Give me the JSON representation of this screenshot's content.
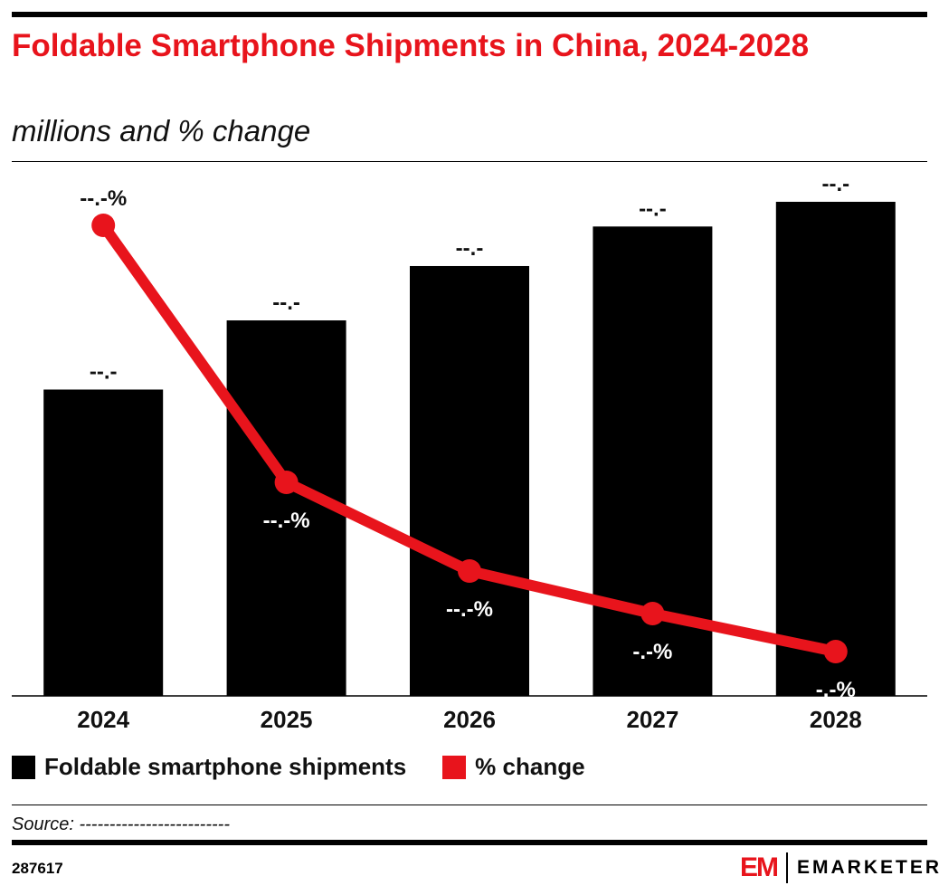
{
  "title": "Foldable Smartphone Shipments in China, 2024-2028",
  "subtitle": "millions and % change",
  "chart_data": {
    "type": "bar",
    "categories": [
      "2024",
      "2025",
      "2026",
      "2027",
      "2028"
    ],
    "series": [
      {
        "name": "Foldable smartphone shipments",
        "type": "bar",
        "color": "#000000",
        "values": [
          6.2,
          7.6,
          8.7,
          9.5,
          10.0
        ],
        "labels": [
          "--.-",
          "--.-",
          "--.-",
          "--.-",
          "--.-"
        ]
      },
      {
        "name": "% change",
        "type": "line",
        "color": "#e8141c",
        "values": [
          52.0,
          23.6,
          13.8,
          9.1,
          4.9
        ],
        "labels": [
          "--.-%",
          "--.-%",
          "--.-%",
          "-.-%",
          "-.-%"
        ]
      }
    ],
    "ylim": [
      0,
      10
    ],
    "y2lim": [
      0,
      58
    ],
    "grid": false,
    "legend": "bottom-left"
  },
  "source": "Source: -------------------------",
  "chart_id": "287617",
  "logo": {
    "mark": "EM",
    "word": "EMARKETER"
  }
}
